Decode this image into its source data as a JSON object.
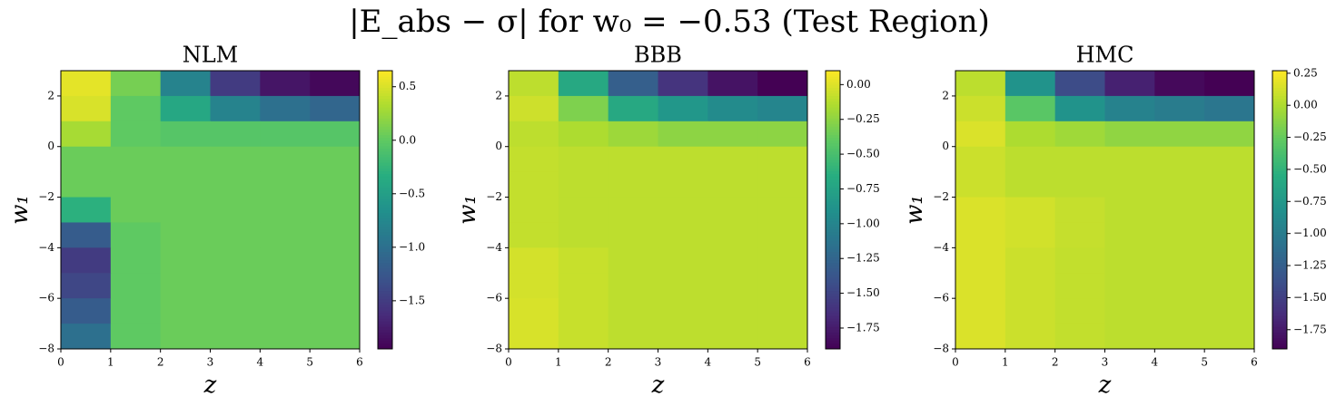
{
  "title": "|E_abs − σ| for w₀ = −0.53 (Test Region)",
  "chart_data": [
    {
      "type": "heatmap",
      "title": "NLM",
      "xlabel": "z",
      "ylabel": "w₁",
      "colormap": "viridis",
      "x": [
        0.5,
        1.5,
        2.5,
        3.5,
        4.5,
        5.5
      ],
      "y": [
        2.5,
        1.5,
        0.5,
        -0.5,
        -1.5,
        -2.5,
        -3.5,
        -4.5,
        -5.5,
        -6.5,
        -7.5
      ],
      "z": [
        [
          0.55,
          0.1,
          -0.8,
          -1.5,
          -1.8,
          -1.9
        ],
        [
          0.5,
          0.0,
          -0.4,
          -0.8,
          -1.0,
          -1.1
        ],
        [
          0.3,
          0.0,
          -0.05,
          -0.05,
          -0.05,
          -0.05
        ],
        [
          0.05,
          0.05,
          0.05,
          0.05,
          0.05,
          0.05
        ],
        [
          0.05,
          0.05,
          0.05,
          0.05,
          0.05,
          0.05
        ],
        [
          -0.3,
          0.05,
          0.05,
          0.05,
          0.05,
          0.05
        ],
        [
          -1.2,
          0.0,
          0.05,
          0.05,
          0.05,
          0.05
        ],
        [
          -1.5,
          0.0,
          0.05,
          0.05,
          0.05,
          0.05
        ],
        [
          -1.4,
          0.0,
          0.05,
          0.05,
          0.05,
          0.05
        ],
        [
          -1.2,
          0.0,
          0.05,
          0.05,
          0.05,
          0.05
        ],
        [
          -1.0,
          0.0,
          0.05,
          0.05,
          0.05,
          0.05
        ]
      ],
      "xlim": [
        0,
        6
      ],
      "ylim": [
        -8,
        3
      ],
      "xticks": [
        0,
        1,
        2,
        3,
        4,
        5,
        6
      ],
      "yticks": [
        {
          "value": -8,
          "label": "−8"
        },
        {
          "value": -6,
          "label": "−6"
        },
        {
          "value": -4,
          "label": "−4"
        },
        {
          "value": -2,
          "label": "−2"
        },
        0,
        2
      ],
      "clim": [
        -1.95,
        0.65
      ],
      "cticks": [
        {
          "value": -1.5,
          "label": "−1.5"
        },
        {
          "value": -1,
          "label": "−1.0"
        },
        {
          "value": -0.5,
          "label": "−0.5"
        },
        {
          "value": 0,
          "label": "0.0"
        },
        0.5
      ]
    },
    {
      "type": "heatmap",
      "title": "BBB",
      "xlabel": "z",
      "ylabel": "w₁",
      "colormap": "viridis",
      "x": [
        0.5,
        1.5,
        2.5,
        3.5,
        4.5,
        5.5
      ],
      "y": [
        2.5,
        1.5,
        0.5,
        -0.5,
        -1.5,
        -2.5,
        -3.5,
        -4.5,
        -5.5,
        -6.5,
        -7.5
      ],
      "z": [
        [
          -0.1,
          -0.7,
          -1.3,
          -1.6,
          -1.8,
          -1.9
        ],
        [
          -0.05,
          -0.3,
          -0.7,
          -0.85,
          -0.95,
          -1.0
        ],
        [
          -0.1,
          -0.15,
          -0.2,
          -0.25,
          -0.25,
          -0.25
        ],
        [
          -0.08,
          -0.1,
          -0.1,
          -0.1,
          -0.1,
          -0.1
        ],
        [
          -0.08,
          -0.1,
          -0.1,
          -0.1,
          -0.1,
          -0.1
        ],
        [
          -0.08,
          -0.1,
          -0.1,
          -0.1,
          -0.1,
          -0.1
        ],
        [
          -0.08,
          -0.1,
          -0.1,
          -0.1,
          -0.1,
          -0.1
        ],
        [
          -0.03,
          -0.07,
          -0.1,
          -0.1,
          -0.1,
          -0.1
        ],
        [
          -0.03,
          -0.07,
          -0.1,
          -0.1,
          -0.1,
          -0.1
        ],
        [
          -0.02,
          -0.07,
          -0.1,
          -0.1,
          -0.1,
          -0.1
        ],
        [
          -0.02,
          -0.07,
          -0.1,
          -0.1,
          -0.1,
          -0.1
        ]
      ],
      "xlim": [
        0,
        6
      ],
      "ylim": [
        -8,
        3
      ],
      "xticks": [
        0,
        1,
        2,
        3,
        4,
        5,
        6
      ],
      "yticks": [
        {
          "value": -8,
          "label": "−8"
        },
        {
          "value": -6,
          "label": "−6"
        },
        {
          "value": -4,
          "label": "−4"
        },
        {
          "value": -2,
          "label": "−2"
        },
        0,
        2
      ],
      "clim": [
        -1.9,
        0.1
      ],
      "cticks": [
        {
          "value": -1.75,
          "label": "−1.75"
        },
        {
          "value": -1.5,
          "label": "−1.50"
        },
        {
          "value": -1.25,
          "label": "−1.25"
        },
        {
          "value": -1,
          "label": "−1.00"
        },
        {
          "value": -0.75,
          "label": "−0.75"
        },
        {
          "value": -0.5,
          "label": "−0.50"
        },
        {
          "value": -0.25,
          "label": "−0.25"
        },
        {
          "value": 0,
          "label": "0.00"
        }
      ]
    },
    {
      "type": "heatmap",
      "title": "HMC",
      "xlabel": "z",
      "ylabel": "w₁",
      "colormap": "viridis",
      "x": [
        0.5,
        1.5,
        2.5,
        3.5,
        4.5,
        5.5
      ],
      "y": [
        2.5,
        1.5,
        0.5,
        -0.5,
        -1.5,
        -2.5,
        -3.5,
        -4.5,
        -5.5,
        -6.5,
        -7.5
      ],
      "z": [
        [
          0.05,
          -0.8,
          -1.4,
          -1.7,
          -1.85,
          -1.9
        ],
        [
          0.1,
          -0.3,
          -0.8,
          -0.95,
          -1.0,
          -1.05
        ],
        [
          0.15,
          0.0,
          -0.05,
          -0.1,
          -0.1,
          -0.1
        ],
        [
          0.1,
          0.05,
          0.05,
          0.05,
          0.05,
          0.05
        ],
        [
          0.1,
          0.05,
          0.05,
          0.05,
          0.05,
          0.05
        ],
        [
          0.15,
          0.12,
          0.08,
          0.05,
          0.05,
          0.05
        ],
        [
          0.15,
          0.12,
          0.08,
          0.05,
          0.05,
          0.05
        ],
        [
          0.15,
          0.1,
          0.07,
          0.05,
          0.05,
          0.05
        ],
        [
          0.15,
          0.1,
          0.07,
          0.05,
          0.05,
          0.05
        ],
        [
          0.15,
          0.1,
          0.07,
          0.05,
          0.05,
          0.05
        ],
        [
          0.15,
          0.1,
          0.07,
          0.05,
          0.05,
          0.05
        ]
      ],
      "xlim": [
        0,
        6
      ],
      "ylim": [
        -8,
        3
      ],
      "xticks": [
        0,
        1,
        2,
        3,
        4,
        5,
        6
      ],
      "yticks": [
        {
          "value": -8,
          "label": "−8"
        },
        {
          "value": -6,
          "label": "−6"
        },
        {
          "value": -4,
          "label": "−4"
        },
        {
          "value": -2,
          "label": "−2"
        },
        0,
        2
      ],
      "clim": [
        -1.9,
        0.27
      ],
      "cticks": [
        {
          "value": -1.75,
          "label": "−1.75"
        },
        {
          "value": -1.5,
          "label": "−1.50"
        },
        {
          "value": -1.25,
          "label": "−1.25"
        },
        {
          "value": -1,
          "label": "−1.00"
        },
        {
          "value": -0.75,
          "label": "−0.75"
        },
        {
          "value": -0.5,
          "label": "−0.50"
        },
        {
          "value": -0.25,
          "label": "−0.25"
        },
        {
          "value": 0,
          "label": "0.00"
        },
        0.25
      ]
    }
  ]
}
